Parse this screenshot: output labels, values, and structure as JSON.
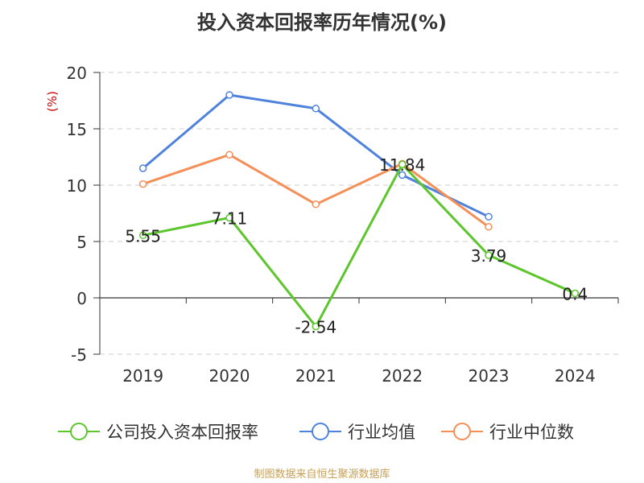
{
  "chart_data": {
    "type": "line",
    "title": "投入资本回报率历年情况(%)",
    "ylabel": "(%)",
    "xlabel": "",
    "categories": [
      "2019",
      "2020",
      "2021",
      "2022",
      "2023",
      "2024"
    ],
    "ylim": [
      -5,
      20
    ],
    "yticks": [
      "20",
      "15",
      "10",
      "5",
      "0",
      "-5"
    ],
    "grid": true,
    "legend_position": "bottom",
    "series": [
      {
        "name": "公司投入资本回报率",
        "color": "#5cc62c",
        "values": [
          5.55,
          7.11,
          -2.54,
          11.84,
          3.79,
          0.4
        ],
        "labels": [
          "5.55",
          "7.11",
          "-2.54",
          "11.84",
          "3.79",
          "0.4"
        ]
      },
      {
        "name": "行业均值",
        "color": "#4e82dc",
        "values": [
          11.5,
          18.0,
          16.8,
          10.9,
          7.2,
          null
        ]
      },
      {
        "name": "行业中位数",
        "color": "#f58f58",
        "values": [
          10.1,
          12.7,
          8.3,
          11.9,
          6.3,
          null
        ]
      }
    ]
  },
  "footer": {
    "source": "制图数据来自恒生聚源数据库"
  }
}
